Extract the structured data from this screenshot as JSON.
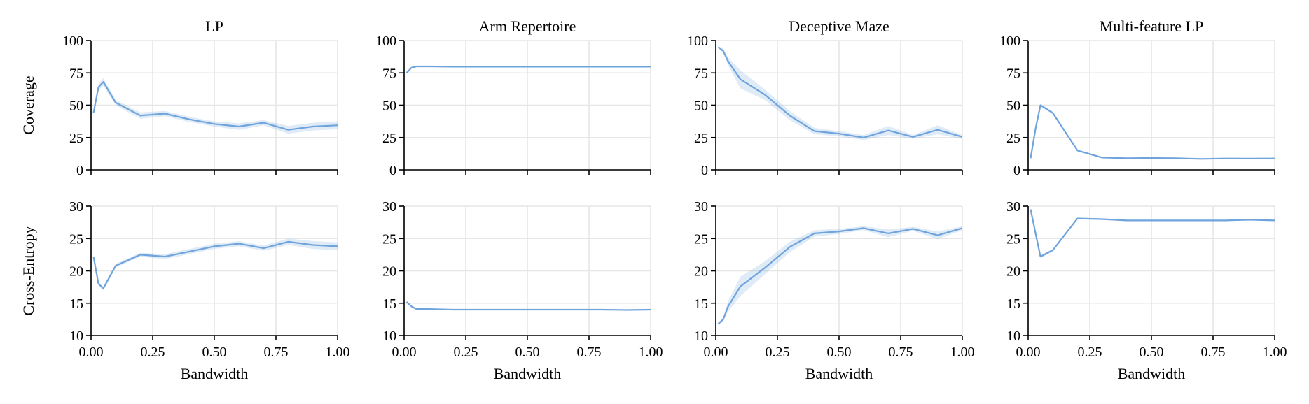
{
  "chart_data": {
    "type": "line",
    "layout": {
      "rows": 2,
      "cols": 4
    },
    "line_color": "#6fa3dc",
    "band_color": "#6fa3dc",
    "xlabel": "Bandwidth",
    "xlim": [
      0,
      1
    ],
    "xticks": [
      0.0,
      0.25,
      0.5,
      0.75,
      1.0
    ],
    "xtick_labels": [
      "0.00",
      "0.25",
      "0.50",
      "0.75",
      "1.00"
    ],
    "column_titles": [
      "LP",
      "Arm Repertoire",
      "Deceptive Maze",
      "Multi-feature LP"
    ],
    "row_labels": [
      "Coverage",
      "Cross-Entropy"
    ],
    "rows": [
      {
        "ylabel": "Coverage",
        "ylim": [
          0,
          100
        ],
        "yticks": [
          0,
          25,
          50,
          75,
          100
        ],
        "panels": [
          {
            "name": "LP",
            "x": [
              0.01,
              0.03,
              0.05,
              0.1,
              0.2,
              0.3,
              0.4,
              0.5,
              0.6,
              0.7,
              0.8,
              0.9,
              1.0
            ],
            "y": [
              44,
              64,
              68,
              52,
              42,
              43.5,
              39,
              35.5,
              33.5,
              36.5,
              31,
              33.5,
              34.5
            ],
            "band": [
              1,
              2.5,
              3,
              2,
              2.5,
              2,
              2,
              2,
              2.5,
              2,
              3,
              3,
              3
            ]
          },
          {
            "name": "Arm Repertoire",
            "x": [
              0.01,
              0.03,
              0.05,
              0.1,
              0.2,
              0.3,
              0.4,
              0.5,
              0.6,
              0.7,
              0.8,
              0.9,
              1.0
            ],
            "y": [
              75,
              79,
              80,
              80,
              79.8,
              79.8,
              79.8,
              79.8,
              79.8,
              79.8,
              79.8,
              79.8,
              79.8
            ],
            "band": [
              0.6,
              0.4,
              0.3,
              0.3,
              0.3,
              0.3,
              0.3,
              0.3,
              0.3,
              0.3,
              0.3,
              0.3,
              0.3
            ]
          },
          {
            "name": "Deceptive Maze",
            "x": [
              0.01,
              0.03,
              0.05,
              0.1,
              0.2,
              0.3,
              0.4,
              0.5,
              0.6,
              0.7,
              0.8,
              0.9,
              1.0
            ],
            "y": [
              95,
              92,
              84,
              70,
              58,
              42,
              30,
              28,
              25,
              30.5,
              25.5,
              31,
              25.5
            ],
            "band": [
              1,
              1.5,
              3,
              7,
              4,
              3.5,
              2.5,
              2,
              2,
              3.5,
              1.5,
              3.5,
              1.5
            ]
          },
          {
            "name": "Multi-feature LP",
            "x": [
              0.01,
              0.03,
              0.05,
              0.1,
              0.2,
              0.3,
              0.4,
              0.5,
              0.6,
              0.7,
              0.8,
              0.9,
              1.0
            ],
            "y": [
              9,
              32,
              50,
              44,
              15,
              9.5,
              9,
              9.2,
              9,
              8.5,
              8.8,
              8.7,
              8.8
            ],
            "band": [
              0.5,
              1,
              1,
              1,
              0.8,
              0.4,
              0.4,
              0.4,
              0.4,
              0.4,
              0.4,
              0.4,
              0.4
            ]
          }
        ]
      },
      {
        "ylabel": "Cross-Entropy",
        "ylim": [
          10,
          30
        ],
        "yticks": [
          10,
          15,
          20,
          25,
          30
        ],
        "panels": [
          {
            "name": "LP",
            "x": [
              0.01,
              0.03,
              0.05,
              0.1,
              0.2,
              0.3,
              0.4,
              0.5,
              0.6,
              0.7,
              0.8,
              0.9,
              1.0
            ],
            "y": [
              22.2,
              18,
              17.3,
              20.8,
              22.5,
              22.2,
              23,
              23.8,
              24.2,
              23.5,
              24.5,
              24,
              23.8
            ],
            "band": [
              0.2,
              0.3,
              0.3,
              0.3,
              0.3,
              0.4,
              0.4,
              0.4,
              0.4,
              0.4,
              0.5,
              0.6,
              0.6
            ]
          },
          {
            "name": "Arm Repertoire",
            "x": [
              0.01,
              0.03,
              0.05,
              0.1,
              0.2,
              0.3,
              0.4,
              0.5,
              0.6,
              0.7,
              0.8,
              0.9,
              1.0
            ],
            "y": [
              15.2,
              14.5,
              14.1,
              14.1,
              14.0,
              14.0,
              14.0,
              14.0,
              14.0,
              14.0,
              14.0,
              13.95,
              14.0
            ],
            "band": [
              0.1,
              0.1,
              0.08,
              0.08,
              0.08,
              0.08,
              0.08,
              0.08,
              0.08,
              0.08,
              0.08,
              0.08,
              0.08
            ]
          },
          {
            "name": "Deceptive Maze",
            "x": [
              0.01,
              0.03,
              0.05,
              0.1,
              0.2,
              0.3,
              0.4,
              0.5,
              0.6,
              0.7,
              0.8,
              0.9,
              1.0
            ],
            "y": [
              11.8,
              12.5,
              14.5,
              17.6,
              20.5,
              23.7,
              25.8,
              26.1,
              26.6,
              25.8,
              26.5,
              25.5,
              26.6
            ],
            "band": [
              0.2,
              0.3,
              0.8,
              1.5,
              1.0,
              0.8,
              0.5,
              0.4,
              0.3,
              0.6,
              0.3,
              0.6,
              0.3
            ]
          },
          {
            "name": "Multi-feature LP",
            "x": [
              0.01,
              0.03,
              0.05,
              0.1,
              0.2,
              0.3,
              0.4,
              0.5,
              0.6,
              0.7,
              0.8,
              0.9,
              1.0
            ],
            "y": [
              29.5,
              25.8,
              22.2,
              23.2,
              28.1,
              28.0,
              27.8,
              27.8,
              27.8,
              27.8,
              27.8,
              27.9,
              27.8
            ],
            "band": [
              0.1,
              0.2,
              0.2,
              0.2,
              0.1,
              0.1,
              0.1,
              0.1,
              0.1,
              0.1,
              0.1,
              0.1,
              0.1
            ]
          }
        ]
      }
    ]
  }
}
